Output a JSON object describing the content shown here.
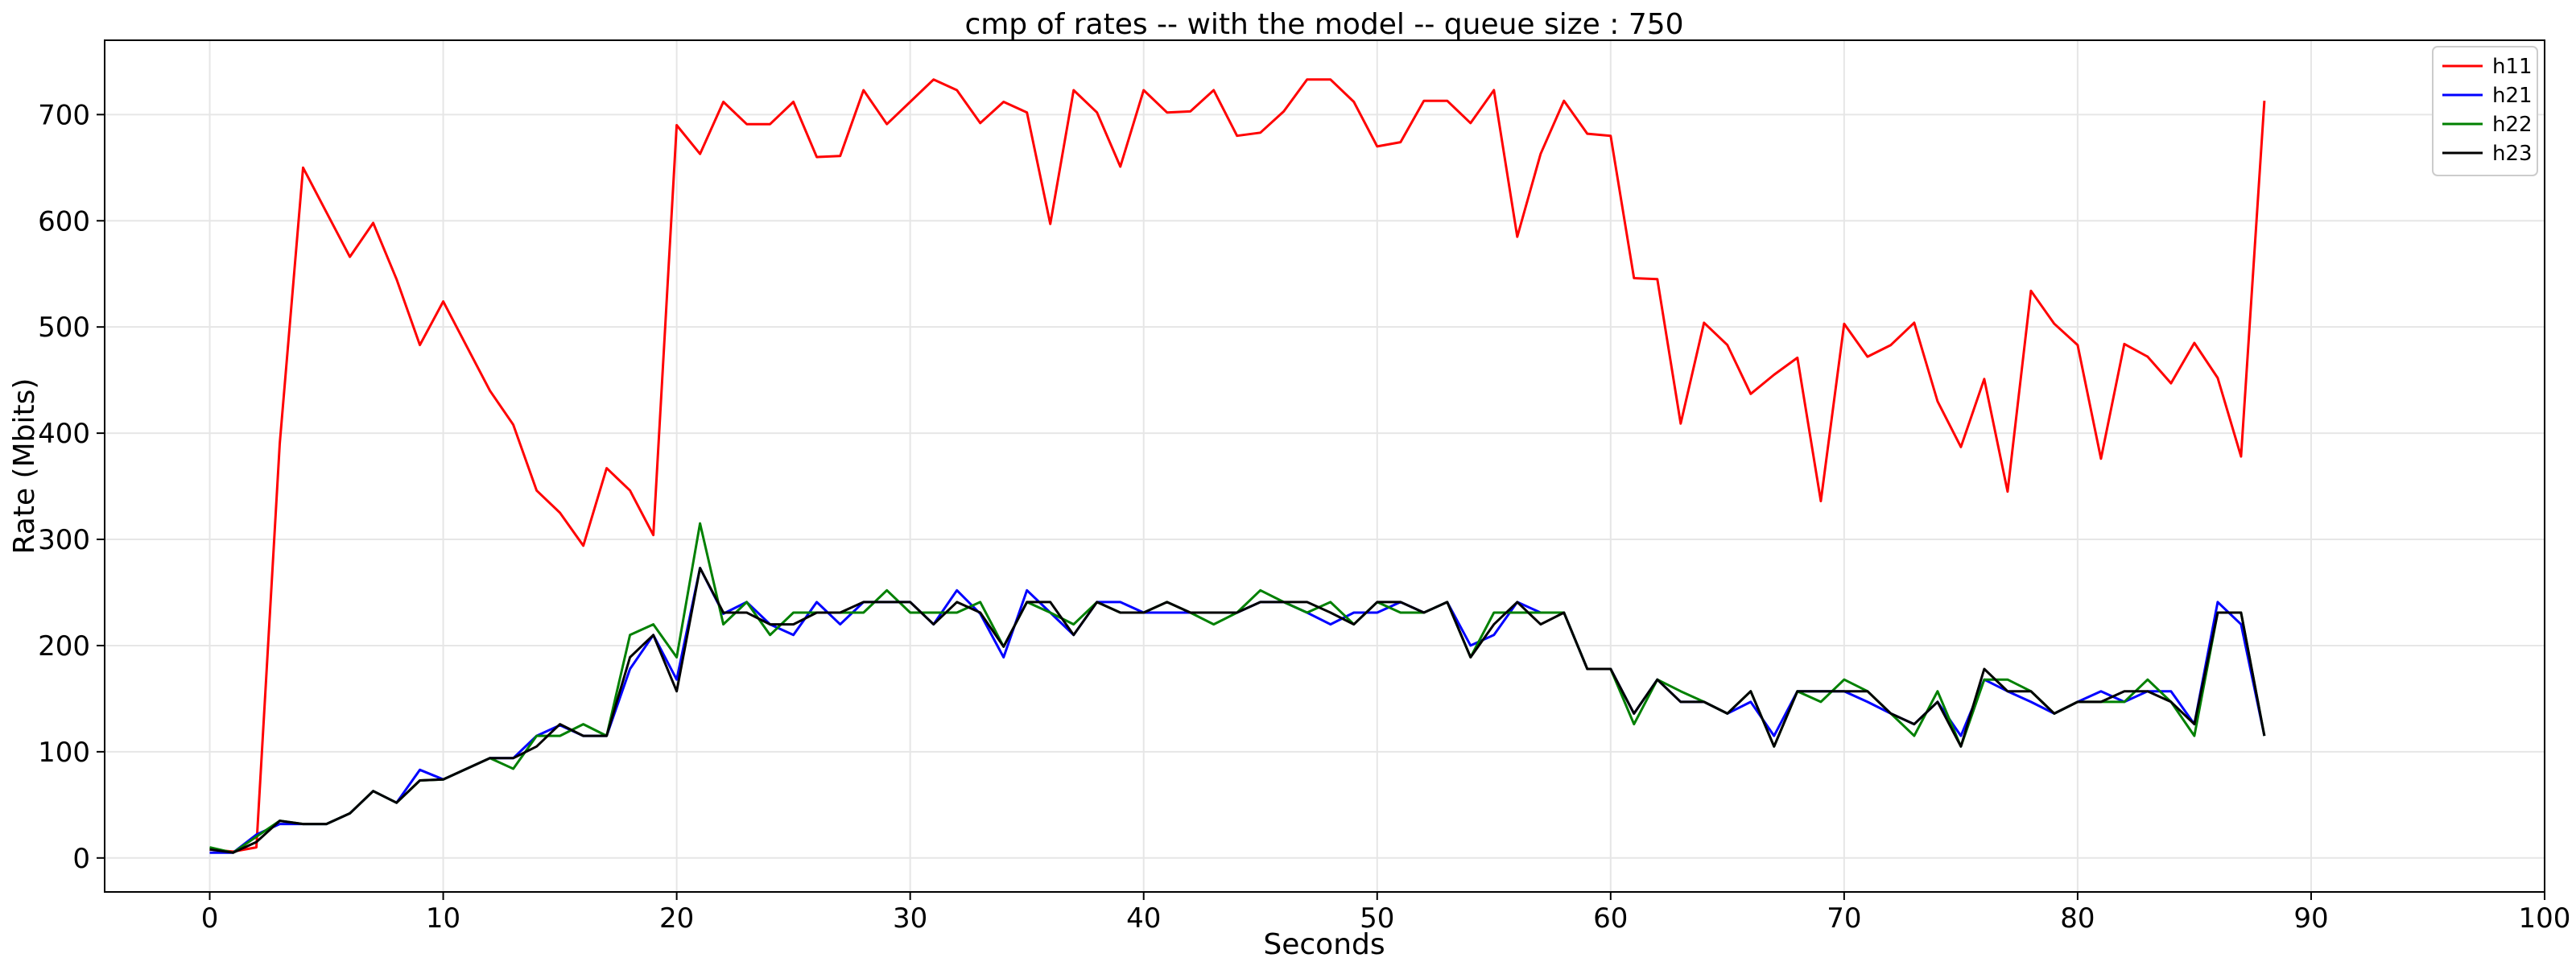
{
  "chart_data": {
    "type": "line",
    "title": "cmp of rates -- with the model -- queue size : 750",
    "xlabel": "Seconds",
    "ylabel": "Rate (Mbits)",
    "xlim": [
      -4.5,
      100
    ],
    "ylim": [
      -32,
      770
    ],
    "xticks": [
      0,
      10,
      20,
      30,
      40,
      50,
      60,
      70,
      80,
      90,
      100
    ],
    "yticks": [
      0,
      100,
      200,
      300,
      400,
      500,
      600,
      700
    ],
    "grid": true,
    "legend_position": "top-right",
    "x": [
      0,
      1,
      2,
      3,
      4,
      5,
      6,
      7,
      8,
      9,
      10,
      11,
      12,
      13,
      14,
      15,
      16,
      17,
      18,
      19,
      20,
      21,
      22,
      23,
      24,
      25,
      26,
      27,
      28,
      29,
      30,
      31,
      32,
      33,
      34,
      35,
      36,
      37,
      38,
      39,
      40,
      41,
      42,
      43,
      44,
      45,
      46,
      47,
      48,
      49,
      50,
      51,
      52,
      53,
      54,
      55,
      56,
      57,
      58,
      59,
      60,
      61,
      62,
      63,
      64,
      65,
      66,
      67,
      68,
      69,
      70,
      71,
      72,
      73,
      74,
      75,
      76,
      77,
      78,
      79,
      80,
      81,
      82,
      83,
      84,
      85,
      86,
      87,
      88
    ],
    "series": [
      {
        "name": "h11",
        "color": "#ff0000",
        "values": [
          8,
          6,
          10,
          390,
          650,
          608,
          566,
          598,
          545,
          483,
          524,
          482,
          440,
          408,
          346,
          325,
          294,
          367,
          346,
          304,
          690,
          663,
          712,
          691,
          691,
          712,
          660,
          661,
          723,
          691,
          712,
          733,
          723,
          692,
          712,
          702,
          597,
          723,
          702,
          651,
          723,
          702,
          703,
          723,
          680,
          683,
          703,
          733,
          733,
          712,
          670,
          674,
          713,
          713,
          692,
          723,
          585,
          663,
          713,
          682,
          680,
          546,
          545,
          409,
          504,
          483,
          437,
          455,
          471,
          336,
          503,
          472,
          483,
          504,
          430,
          387,
          451,
          345,
          534,
          503,
          483,
          376,
          484,
          472,
          447,
          485,
          452,
          378,
          713
        ]
      },
      {
        "name": "h21",
        "color": "#0000ff",
        "values": [
          5,
          5,
          22,
          32,
          32,
          32,
          42,
          63,
          52,
          83,
          74,
          84,
          94,
          94,
          115,
          125,
          115,
          115,
          178,
          210,
          168,
          273,
          230,
          241,
          220,
          210,
          241,
          220,
          241,
          241,
          241,
          220,
          252,
          230,
          189,
          252,
          231,
          210,
          241,
          241,
          231,
          231,
          231,
          231,
          231,
          241,
          241,
          231,
          220,
          231,
          231,
          241,
          231,
          241,
          200,
          210,
          241,
          231,
          231,
          178,
          178,
          136,
          168,
          147,
          147,
          136,
          147,
          115,
          157,
          157,
          157,
          147,
          136,
          126,
          147,
          115,
          168,
          157,
          147,
          136,
          147,
          157,
          147,
          157,
          157,
          126,
          241,
          220,
          115
        ]
      },
      {
        "name": "h22",
        "color": "#008000",
        "values": [
          10,
          5,
          20,
          35,
          32,
          32,
          42,
          63,
          52,
          73,
          74,
          84,
          94,
          84,
          115,
          115,
          126,
          115,
          210,
          220,
          189,
          315,
          220,
          241,
          210,
          231,
          231,
          231,
          231,
          252,
          231,
          231,
          231,
          241,
          199,
          241,
          231,
          220,
          241,
          231,
          231,
          241,
          231,
          220,
          231,
          252,
          241,
          231,
          241,
          220,
          241,
          231,
          231,
          241,
          189,
          231,
          231,
          231,
          231,
          178,
          178,
          126,
          168,
          157,
          147,
          136,
          157,
          105,
          157,
          147,
          168,
          157,
          136,
          115,
          157,
          105,
          168,
          168,
          157,
          136,
          147,
          147,
          147,
          168,
          147,
          115,
          231,
          231,
          115
        ]
      },
      {
        "name": "h23",
        "color": "#000000",
        "values": [
          8,
          5,
          15,
          35,
          32,
          32,
          42,
          63,
          52,
          73,
          74,
          84,
          94,
          94,
          105,
          126,
          115,
          115,
          189,
          210,
          157,
          273,
          231,
          231,
          220,
          220,
          231,
          231,
          241,
          241,
          241,
          220,
          241,
          231,
          199,
          241,
          241,
          210,
          241,
          231,
          231,
          241,
          231,
          231,
          231,
          241,
          241,
          241,
          231,
          220,
          241,
          241,
          231,
          241,
          189,
          220,
          241,
          220,
          231,
          178,
          178,
          136,
          168,
          147,
          147,
          136,
          157,
          105,
          157,
          157,
          157,
          157,
          136,
          126,
          147,
          105,
          178,
          157,
          157,
          136,
          147,
          147,
          157,
          157,
          147,
          126,
          231,
          231,
          115
        ]
      }
    ]
  }
}
